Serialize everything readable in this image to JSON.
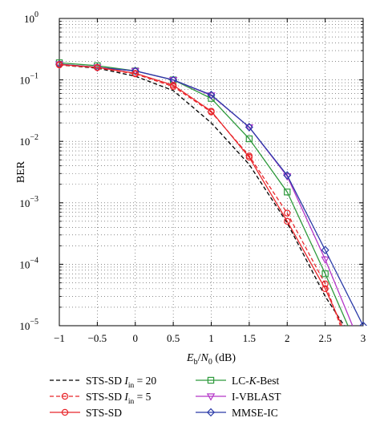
{
  "chart_data": {
    "type": "line",
    "xlabel": "E_b/N_0 (dB)",
    "ylabel": "BER",
    "xlim": [
      -1,
      3
    ],
    "ylim": [
      1e-05,
      1
    ],
    "yscale": "log",
    "grid": "dotted",
    "x_ticks": [
      -1,
      -0.5,
      0,
      0.5,
      1,
      1.5,
      2,
      2.5,
      3
    ],
    "x_tick_labels": [
      "−1",
      "−0.5",
      "0",
      "0.5",
      "1",
      "1.5",
      "2",
      "2.5",
      "3"
    ],
    "y_tick_exponents": [
      0,
      -1,
      -2,
      -3,
      -4,
      -5
    ],
    "legend_position": "bottom, two columns below plot",
    "series": [
      {
        "name": "STS-SD I_in = 20",
        "color": "#000000",
        "dash": "dashed",
        "marker": "none",
        "x": [
          -1,
          -0.5,
          0,
          0.5,
          1,
          1.5,
          2,
          2.5,
          2.75
        ],
        "y": [
          0.175,
          0.155,
          0.115,
          0.067,
          0.02,
          0.0042,
          0.00047,
          3e-05,
          1e-05
        ]
      },
      {
        "name": "STS-SD I_in = 5",
        "color": "#e8262b",
        "dash": "dashed",
        "marker": "circle",
        "x": [
          -1,
          -0.5,
          0,
          0.5,
          1,
          1.5,
          2,
          2.5,
          2.7
        ],
        "y": [
          0.175,
          0.158,
          0.125,
          0.078,
          0.03,
          0.0058,
          0.00068,
          4.8e-05,
          1e-05
        ]
      },
      {
        "name": "STS-SD",
        "color": "#e8262b",
        "dash": "solid",
        "marker": "circle",
        "x": [
          -1,
          -0.5,
          0,
          0.5,
          1,
          1.5,
          2,
          2.5,
          2.72
        ],
        "y": [
          0.178,
          0.16,
          0.128,
          0.082,
          0.031,
          0.0055,
          0.0005,
          4e-05,
          1e-05
        ]
      },
      {
        "name": "LC-K-Best",
        "color": "#2e9a3c",
        "dash": "solid",
        "marker": "square",
        "x": [
          -1,
          -0.5,
          0,
          0.5,
          1,
          1.5,
          2,
          2.5,
          2.8
        ],
        "y": [
          0.19,
          0.17,
          0.14,
          0.1,
          0.05,
          0.011,
          0.0015,
          7e-05,
          1e-05
        ]
      },
      {
        "name": "I-VBLAST",
        "color": "#b436c8",
        "dash": "solid",
        "marker": "triangle-down",
        "x": [
          -1,
          -0.5,
          0,
          0.5,
          1,
          1.5,
          2,
          2.5,
          2.86
        ],
        "y": [
          0.18,
          0.16,
          0.14,
          0.1,
          0.056,
          0.017,
          0.0027,
          0.00012,
          1e-05
        ]
      },
      {
        "name": "MMSE-IC",
        "color": "#2a3aa8",
        "dash": "solid",
        "marker": "diamond",
        "x": [
          -1,
          -0.5,
          0,
          0.5,
          1,
          1.5,
          2,
          2.5,
          3
        ],
        "y": [
          0.18,
          0.16,
          0.14,
          0.1,
          0.057,
          0.017,
          0.0028,
          0.00017,
          1e-05
        ]
      }
    ]
  }
}
